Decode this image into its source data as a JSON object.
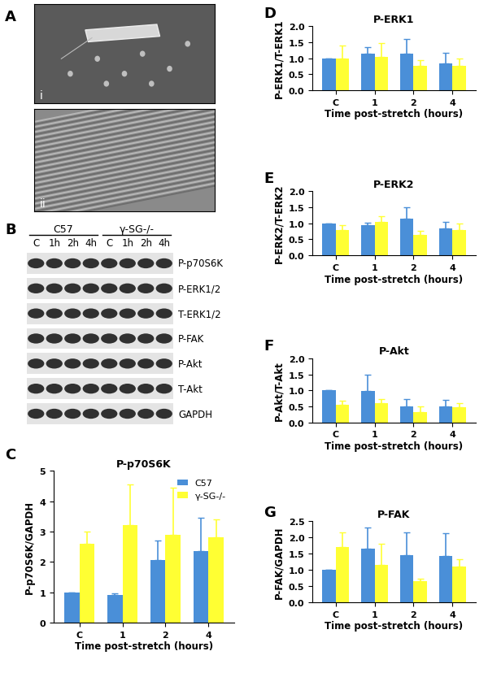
{
  "panel_labels": [
    "A",
    "B",
    "C",
    "D",
    "E",
    "F",
    "G"
  ],
  "images": {
    "labels": [
      "i",
      "ii"
    ]
  },
  "blot": {
    "groups": [
      {
        "name": "C57",
        "lanes": [
          "C",
          "1h",
          "2h",
          "4h"
        ]
      },
      {
        "name": "γ-SG-/-",
        "lanes": [
          "C",
          "1h",
          "2h",
          "4h"
        ]
      }
    ],
    "rows": [
      "P-p70S6K",
      "P-ERK1/2",
      "T-ERK1/2",
      "P-FAK",
      "P-Akt",
      "T-Akt",
      "GAPDH"
    ]
  },
  "chart_data": [
    {
      "type": "bar",
      "title": "P-p70S6K",
      "x_label": "Time post-stretch (hours)",
      "y_label": "P-p70S6K/GAPDH",
      "categories": [
        "C",
        "1",
        "2",
        "4"
      ],
      "ylim": [
        0,
        5
      ],
      "yticks": [
        0,
        1,
        2,
        3,
        4,
        5
      ],
      "legend": "upper right",
      "series": [
        {
          "name": "C57",
          "color": "#4a8fd8",
          "values": [
            1.0,
            0.92,
            2.05,
            2.35
          ],
          "errors": [
            0,
            0.05,
            0.65,
            1.1
          ]
        },
        {
          "name": "γ-SG-/-",
          "color": "#ffff33",
          "values": [
            2.6,
            3.2,
            2.9,
            2.8
          ],
          "errors": [
            0.4,
            1.35,
            1.55,
            0.6
          ]
        }
      ]
    },
    {
      "type": "bar",
      "title": "P-ERK1",
      "x_label": "Time post-stretch (hours)",
      "y_label": "P-ERK1/T-ERK1",
      "categories": [
        "C",
        "1",
        "2",
        "4"
      ],
      "ylim": [
        0,
        2.0
      ],
      "yticks": [
        {
          "value": 0,
          "label": "0.0"
        },
        0.5,
        {
          "value": 1,
          "label": "1.0"
        },
        1.5,
        {
          "value": 2,
          "label": "2.0"
        }
      ],
      "series": [
        {
          "color": "#4a8fd8",
          "values": [
            1.0,
            1.15,
            1.15,
            0.83
          ],
          "errors": [
            0,
            0.2,
            0.45,
            0.33
          ]
        },
        {
          "color": "#ffff33",
          "values": [
            1.0,
            1.05,
            0.77,
            0.75
          ],
          "errors": [
            0.4,
            0.43,
            0.17,
            0.25
          ]
        }
      ]
    },
    {
      "type": "bar",
      "title": "P-ERK2",
      "x_label": "Time post-stretch (hours)",
      "y_label": "P-ERK2/T-ERK2",
      "categories": [
        "C",
        "1",
        "2",
        "4"
      ],
      "ylim": [
        0,
        2.0
      ],
      "yticks": [
        {
          "value": 0,
          "label": "0.0"
        },
        0.5,
        {
          "value": 1,
          "label": "1.0"
        },
        1.5,
        {
          "value": 2,
          "label": "2.0"
        }
      ],
      "series": [
        {
          "color": "#4a8fd8",
          "values": [
            1.0,
            0.95,
            1.15,
            0.85
          ],
          "errors": [
            0,
            0.07,
            0.35,
            0.18
          ]
        },
        {
          "color": "#ffff33",
          "values": [
            0.8,
            1.05,
            0.63,
            0.78
          ],
          "errors": [
            0.13,
            0.18,
            0.13,
            0.22
          ]
        }
      ]
    },
    {
      "type": "bar",
      "title": "P-Akt",
      "x_label": "Time post-stretch (hours)",
      "y_label": "P-Akt/T-Akt",
      "categories": [
        "C",
        "1",
        "2",
        "4"
      ],
      "ylim": [
        0,
        2.0
      ],
      "yticks": [
        {
          "value": 0,
          "label": "0.0"
        },
        0.5,
        {
          "value": 1,
          "label": "1.0"
        },
        1.5,
        {
          "value": 2,
          "label": "2.0"
        }
      ],
      "series": [
        {
          "color": "#4a8fd8",
          "values": [
            1.0,
            0.98,
            0.5,
            0.5
          ],
          "errors": [
            0,
            0.52,
            0.23,
            0.2
          ]
        },
        {
          "color": "#ffff33",
          "values": [
            0.55,
            0.6,
            0.32,
            0.48
          ],
          "errors": [
            0.13,
            0.13,
            0.17,
            0.12
          ]
        }
      ]
    },
    {
      "type": "bar",
      "title": "P-FAK",
      "x_label": "Time post-stretch (hours)",
      "y_label": "P-FAK/GAPDH",
      "categories": [
        "C",
        "1",
        "2",
        "4"
      ],
      "ylim": [
        0,
        2.5
      ],
      "yticks": [
        {
          "value": 0,
          "label": "0.0"
        },
        0.5,
        {
          "value": 1,
          "label": "1.0"
        },
        1.5,
        {
          "value": 2,
          "label": "2.0"
        },
        2.5
      ],
      "series": [
        {
          "color": "#4a8fd8",
          "values": [
            1.0,
            1.65,
            1.45,
            1.43
          ],
          "errors": [
            0,
            0.65,
            0.7,
            0.7
          ]
        },
        {
          "color": "#ffff33",
          "values": [
            1.7,
            1.15,
            0.65,
            1.1
          ],
          "errors": [
            0.47,
            0.65,
            0.08,
            0.23
          ]
        }
      ]
    }
  ]
}
